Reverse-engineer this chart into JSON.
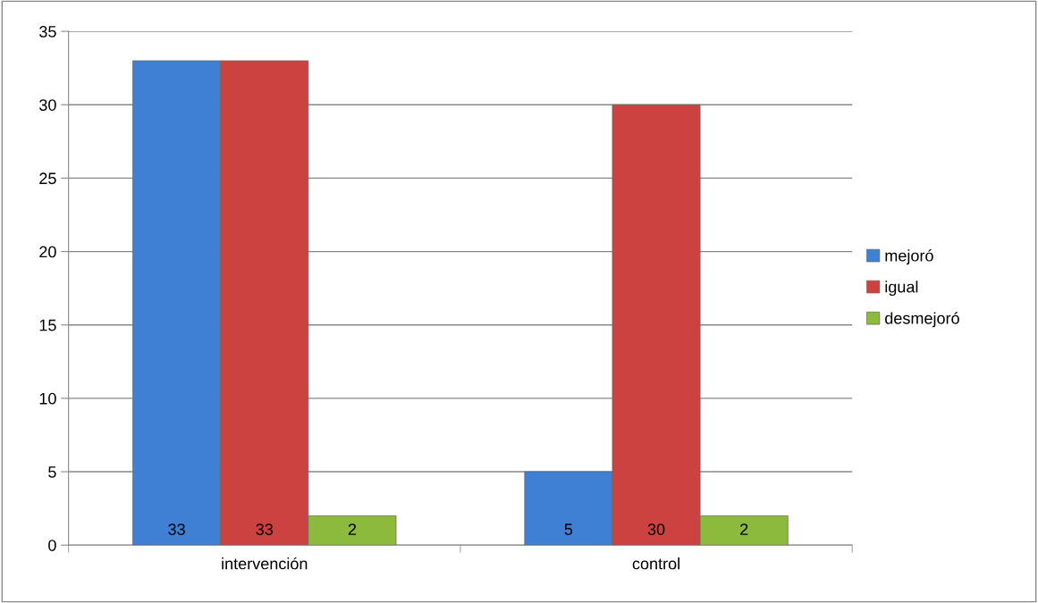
{
  "chart_data": {
    "type": "bar",
    "categories": [
      "intervención",
      "control"
    ],
    "series": [
      {
        "name": "mejoró",
        "color": "#3f7fd4",
        "values": [
          33,
          5
        ]
      },
      {
        "name": "igual",
        "color": "#cc4240",
        "values": [
          33,
          30
        ]
      },
      {
        "name": "desmejoró",
        "color": "#8cba3c",
        "values": [
          2,
          2
        ]
      }
    ],
    "ylim": [
      0,
      35
    ],
    "yticks": [
      0,
      5,
      10,
      15,
      20,
      25,
      30,
      35
    ],
    "grid": "y",
    "legend": "right",
    "data_labels": true
  }
}
